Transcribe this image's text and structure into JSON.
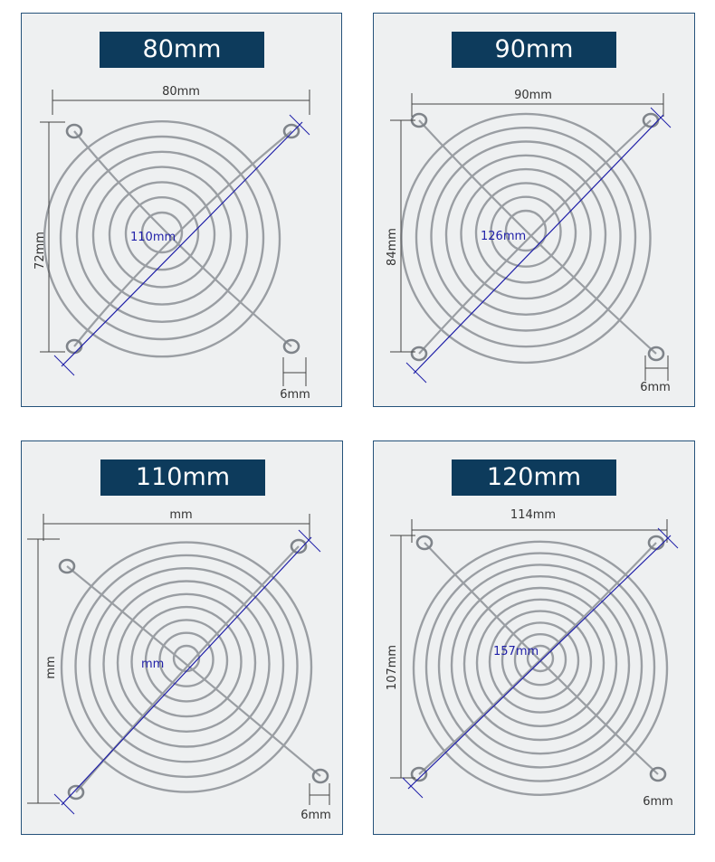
{
  "colors": {
    "panel_bg": "#eef0f1",
    "panel_border": "#25527a",
    "banner_bg": "#0d3b5c",
    "banner_text": "#ffffff",
    "dim_line": "#444444",
    "diag_line": "#1f1fa8",
    "wire": "#9a9ea3"
  },
  "panels": [
    {
      "title": "80mm",
      "width_label": "80mm",
      "height_label": "72mm",
      "diagonal_label": "110mm",
      "hole_label": "6mm",
      "rings": 7
    },
    {
      "title": "90mm",
      "width_label": "90mm",
      "height_label": "84mm",
      "diagonal_label": "126mm",
      "hole_label": "6mm",
      "rings": 8
    },
    {
      "title": "110mm",
      "width_label": "mm",
      "height_label": "mm",
      "diagonal_label": "mm",
      "hole_label": "6mm",
      "rings": 9
    },
    {
      "title": "120mm",
      "width_label": "114mm",
      "height_label": "107mm",
      "diagonal_label": "157mm",
      "hole_label": "6mm",
      "rings": 10
    }
  ]
}
